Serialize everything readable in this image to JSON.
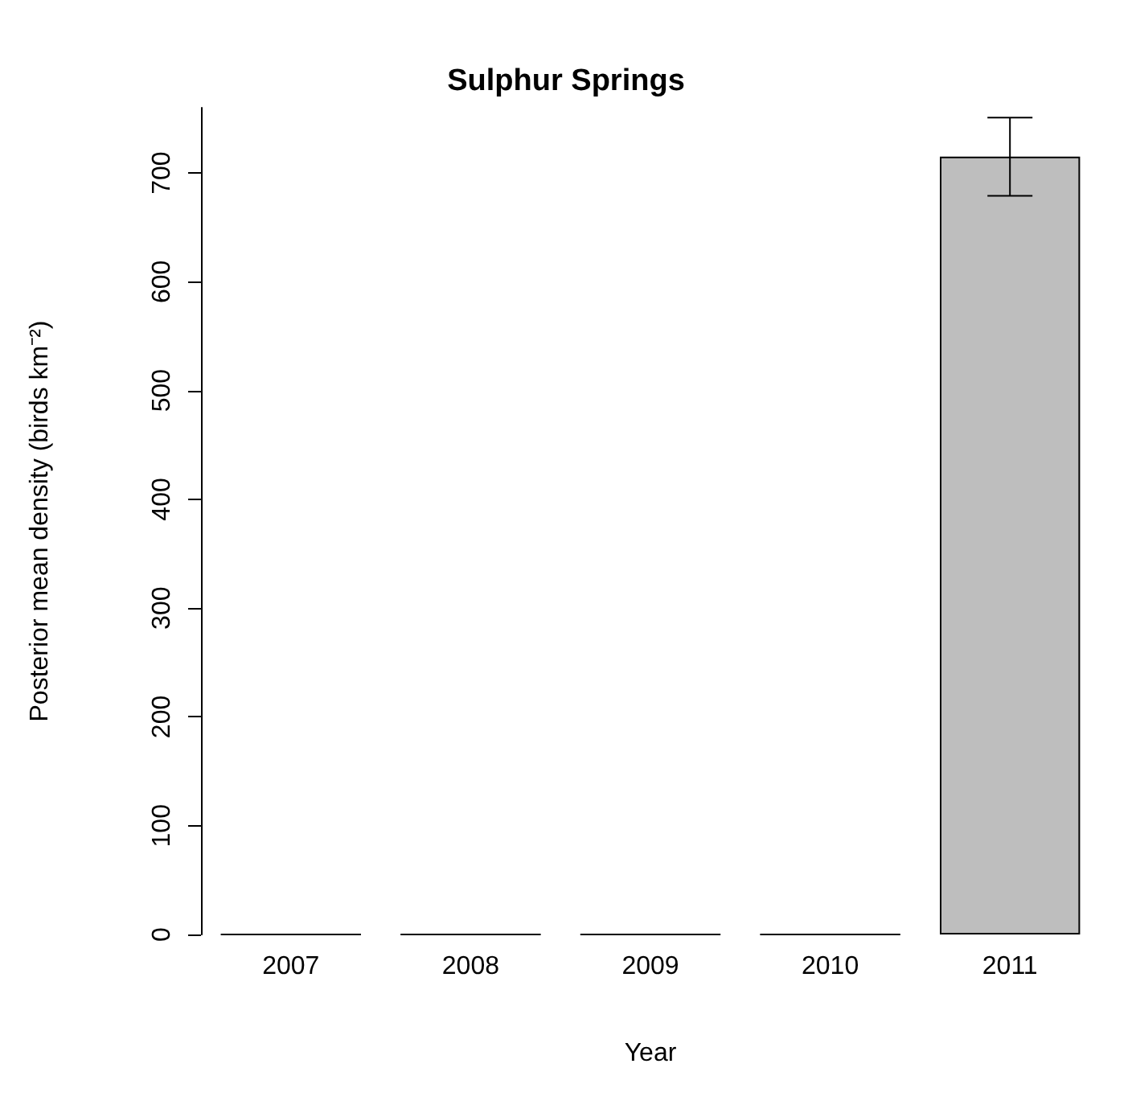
{
  "chart_data": {
    "type": "bar",
    "title": "Sulphur Springs",
    "xlabel": "Year",
    "ylabel": "Posterior mean density (birds km⁻²)",
    "categories": [
      "2007",
      "2008",
      "2009",
      "2010",
      "2011"
    ],
    "values": [
      0,
      0,
      0,
      0,
      715
    ],
    "errors": [
      null,
      null,
      null,
      null,
      [
        679,
        751
      ]
    ],
    "color": "#bebebe",
    "ylim": [
      0,
      760
    ],
    "yticks": [
      0,
      100,
      200,
      300,
      400,
      500,
      600,
      700
    ],
    "grid": false
  }
}
